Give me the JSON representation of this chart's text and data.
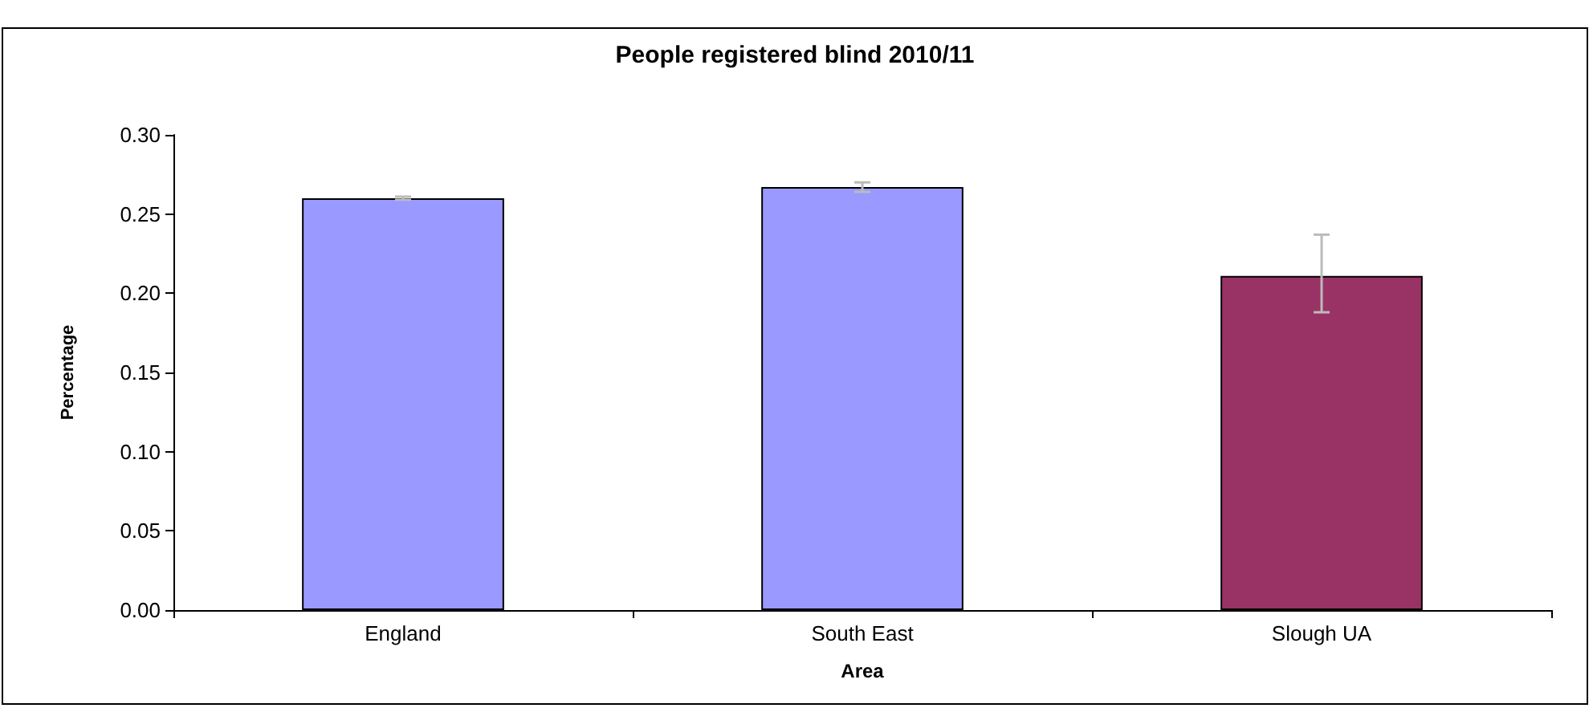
{
  "chart_data": {
    "type": "bar",
    "title": "People registered blind 2010/11",
    "xlabel": "Area",
    "ylabel": "Percentage",
    "categories": [
      "England",
      "South East",
      "Slough UA"
    ],
    "values": [
      0.26,
      0.267,
      0.211
    ],
    "colors": [
      "#9999ff",
      "#9999ff",
      "#993366"
    ],
    "errors": [
      0.001,
      0.003,
      [
        0.188,
        0.237
      ]
    ],
    "ylim": [
      0,
      0.3
    ],
    "yticks": [
      {
        "value": 0,
        "label": "0.00"
      },
      {
        "value": 0.05,
        "label": "0.05"
      },
      {
        "value": 0.1,
        "label": "0.10"
      },
      {
        "value": 0.15,
        "label": "0.15"
      },
      {
        "value": 0.2,
        "label": "0.20"
      },
      {
        "value": 0.25,
        "label": "0.25"
      },
      {
        "value": 0.3,
        "label": "0.30"
      }
    ],
    "grid": false
  }
}
